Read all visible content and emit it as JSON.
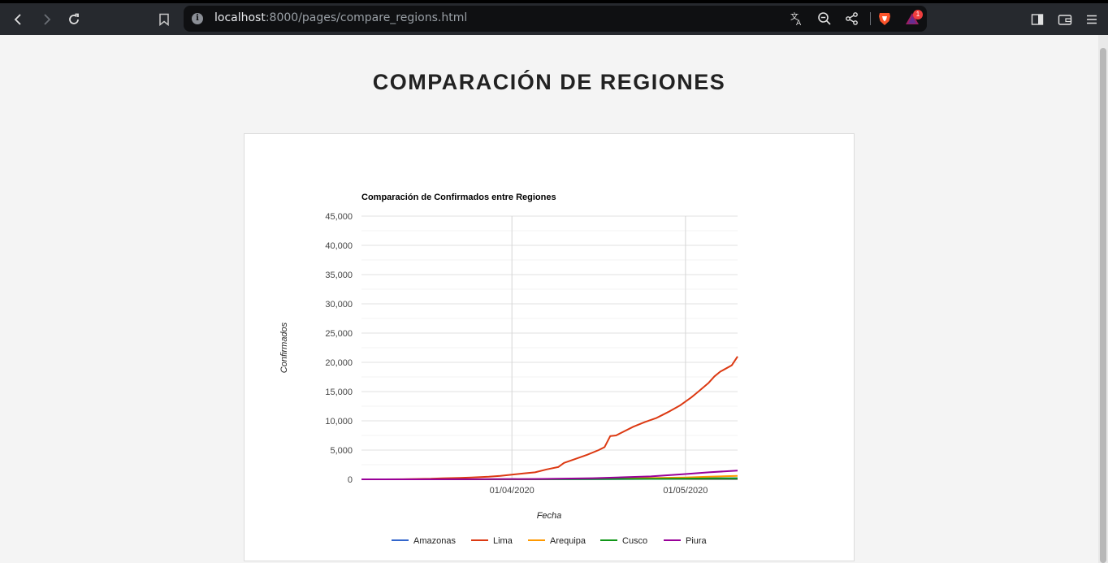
{
  "browser": {
    "url_host": "localhost",
    "url_path": ":8000/pages/compare_regions.html",
    "notification_count": "1",
    "icons": [
      "back-icon",
      "forward-icon",
      "reload-icon",
      "bookmark-icon",
      "info-icon",
      "translate-icon",
      "zoom-out-icon",
      "share-icon",
      "brave-shield-icon",
      "brave-rewards-icon",
      "sidebar-icon",
      "wallet-icon",
      "menu-icon"
    ]
  },
  "page": {
    "title": "COMPARACIÓN DE REGIONES"
  },
  "colors": {
    "Amazonas": "#3366cc",
    "Lima": "#dc3912",
    "Arequipa": "#ff9900",
    "Cusco": "#109618",
    "Piura": "#990099"
  },
  "chart_data": {
    "type": "line",
    "title": "Comparación de Confirmados entre Regiones",
    "xlabel": "Fecha",
    "ylabel": "Confirmados",
    "ylim": [
      0,
      45000
    ],
    "yticks": [
      "0",
      "5,000",
      "10,000",
      "15,000",
      "20,000",
      "25,000",
      "30,000",
      "35,000",
      "40,000",
      "45,000"
    ],
    "xlim": [
      "2020-03-06",
      "2020-05-10"
    ],
    "xticks": [
      {
        "date": "2020-04-01",
        "label": "01/04/2020"
      },
      {
        "date": "2020-05-01",
        "label": "01/05/2020"
      }
    ],
    "grid": true,
    "legend_position": "bottom",
    "series": [
      {
        "name": "Amazonas",
        "points": [
          [
            "2020-03-06",
            0
          ],
          [
            "2020-03-25",
            0
          ],
          [
            "2020-04-05",
            5
          ],
          [
            "2020-04-15",
            20
          ],
          [
            "2020-04-25",
            70
          ],
          [
            "2020-05-01",
            120
          ],
          [
            "2020-05-05",
            160
          ],
          [
            "2020-05-10",
            200
          ]
        ]
      },
      {
        "name": "Lima",
        "points": [
          [
            "2020-03-06",
            0
          ],
          [
            "2020-03-10",
            5
          ],
          [
            "2020-03-13",
            20
          ],
          [
            "2020-03-15",
            60
          ],
          [
            "2020-03-18",
            100
          ],
          [
            "2020-03-20",
            180
          ],
          [
            "2020-03-23",
            250
          ],
          [
            "2020-03-25",
            300
          ],
          [
            "2020-03-28",
            450
          ],
          [
            "2020-03-30",
            600
          ],
          [
            "2020-04-01",
            800
          ],
          [
            "2020-04-03",
            1000
          ],
          [
            "2020-04-05",
            1200
          ],
          [
            "2020-04-07",
            1700
          ],
          [
            "2020-04-09",
            2100
          ],
          [
            "2020-04-10",
            2800
          ],
          [
            "2020-04-12",
            3500
          ],
          [
            "2020-04-14",
            4200
          ],
          [
            "2020-04-16",
            5000
          ],
          [
            "2020-04-17",
            5500
          ],
          [
            "2020-04-18",
            7400
          ],
          [
            "2020-04-19",
            7500
          ],
          [
            "2020-04-20",
            8000
          ],
          [
            "2020-04-22",
            9000
          ],
          [
            "2020-04-24",
            9800
          ],
          [
            "2020-04-26",
            10500
          ],
          [
            "2020-04-27",
            11000
          ],
          [
            "2020-04-28",
            11500
          ],
          [
            "2020-04-30",
            12600
          ],
          [
            "2020-05-02",
            14000
          ],
          [
            "2020-05-03",
            14800
          ],
          [
            "2020-05-05",
            16500
          ],
          [
            "2020-05-06",
            17600
          ],
          [
            "2020-05-07",
            18400
          ],
          [
            "2020-05-09",
            19500
          ],
          [
            "2020-05-10",
            21000
          ]
        ]
      },
      {
        "name": "Arequipa",
        "points": [
          [
            "2020-03-06",
            0
          ],
          [
            "2020-03-25",
            5
          ],
          [
            "2020-04-05",
            30
          ],
          [
            "2020-04-15",
            100
          ],
          [
            "2020-04-25",
            220
          ],
          [
            "2020-05-01",
            320
          ],
          [
            "2020-05-05",
            450
          ],
          [
            "2020-05-10",
            600
          ]
        ]
      },
      {
        "name": "Cusco",
        "points": [
          [
            "2020-03-06",
            0
          ],
          [
            "2020-03-25",
            5
          ],
          [
            "2020-04-05",
            20
          ],
          [
            "2020-04-15",
            50
          ],
          [
            "2020-04-25",
            90
          ],
          [
            "2020-05-01",
            120
          ],
          [
            "2020-05-05",
            150
          ],
          [
            "2020-05-10",
            180
          ]
        ]
      },
      {
        "name": "Piura",
        "points": [
          [
            "2020-03-06",
            0
          ],
          [
            "2020-03-25",
            10
          ],
          [
            "2020-04-05",
            60
          ],
          [
            "2020-04-15",
            200
          ],
          [
            "2020-04-20",
            350
          ],
          [
            "2020-04-25",
            500
          ],
          [
            "2020-05-01",
            900
          ],
          [
            "2020-05-05",
            1200
          ],
          [
            "2020-05-10",
            1500
          ]
        ]
      }
    ]
  }
}
